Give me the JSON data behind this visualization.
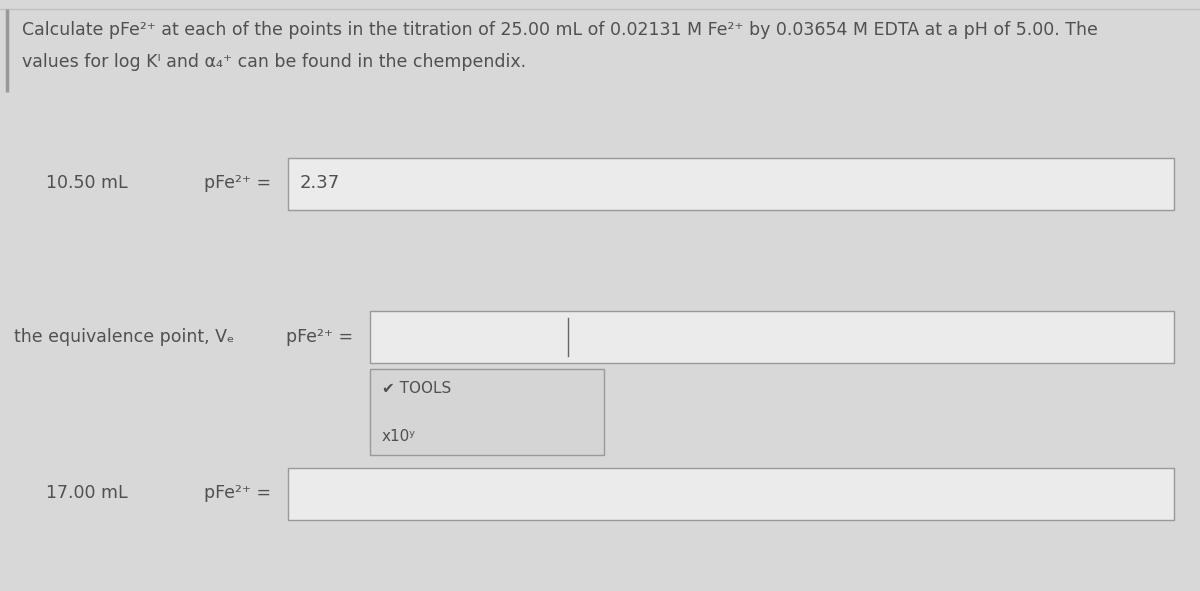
{
  "background_color": "#d8d8d8",
  "title_line1": "Calculate pFe²⁺ at each of the points in the titration of 25.00 mL of 0.02131 M Fe²⁺ by 0.03654 M EDTA at a pH of 5.00. The",
  "title_line2": "values for log Kᴵ and α₄⁺ can be found in the chempendix.",
  "row1_label": "10.50 mL",
  "row1_formula": "pFe²⁺ =",
  "row1_value": "2.37",
  "row2_label": "the equivalence point, Vₑ",
  "row2_formula": "pFe²⁺ =",
  "row2_value": "",
  "row3_label": "17.00 mL",
  "row3_formula": "pFe²⁺ =",
  "row3_value": "",
  "tools_label": "✔ TOOLS",
  "x10_label": "x10ʸ",
  "box_facecolor": "#ebebeb",
  "box_edgecolor": "#999999",
  "text_color": "#505050",
  "tools_box_facecolor": "#d5d5d5",
  "tools_box_edgecolor": "#999999",
  "vbar_color": "#999999",
  "hline_color": "#c0c0c0",
  "title_fontsize": 12.5,
  "label_fontsize": 12.5,
  "value_fontsize": 13
}
